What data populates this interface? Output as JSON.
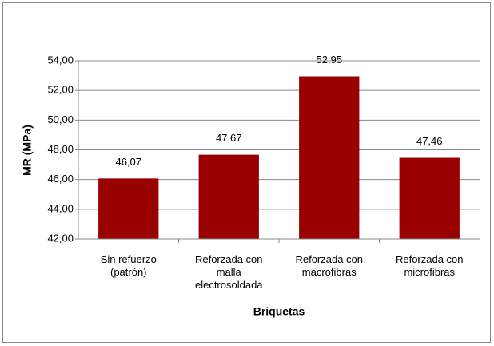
{
  "chart_data": {
    "type": "bar",
    "x_label": "Briquetas",
    "y_label": "MR (MPa)",
    "categories": [
      "Sin refuerzo (patrón)",
      "Reforzada con malla electrosoldada",
      "Reforzada con macrofibras",
      "Reforzada con microfibras"
    ],
    "values": [
      46.07,
      47.67,
      52.95,
      47.46
    ],
    "value_labels": [
      "46,07",
      "47,67",
      "52,95",
      "47,46"
    ],
    "color": "#990000",
    "ylim": [
      42,
      54
    ],
    "yticks": [
      {
        "value": 42,
        "label": "42,00"
      },
      {
        "value": 44,
        "label": "44,00"
      },
      {
        "value": 46,
        "label": "46,00"
      },
      {
        "value": 48,
        "label": "48,00"
      },
      {
        "value": 50,
        "label": "50,00"
      },
      {
        "value": 52,
        "label": "52,00"
      },
      {
        "value": 54,
        "label": "54,00"
      }
    ],
    "grid": true
  }
}
